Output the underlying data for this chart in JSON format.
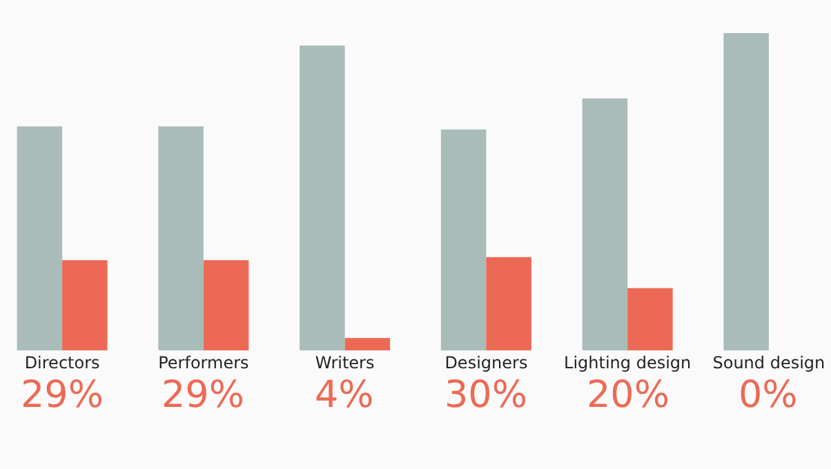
{
  "chart_data": {
    "type": "bar",
    "ylim": [
      0,
      102
    ],
    "tick_labels": "x",
    "categories": [
      "Directors",
      "Performers",
      "Writers",
      "Designers",
      "Lighting design",
      "Sound design"
    ],
    "series": [
      {
        "color": "#a9bcb9",
        "values": [
          72,
          72,
          98,
          71,
          81,
          102
        ]
      },
      {
        "color": "#ec6a55",
        "values": [
          29,
          29,
          4,
          30,
          20,
          0
        ],
        "value_labels": [
          "29%",
          "29%",
          "4%",
          "30%",
          "20%",
          "0%"
        ]
      }
    ]
  }
}
